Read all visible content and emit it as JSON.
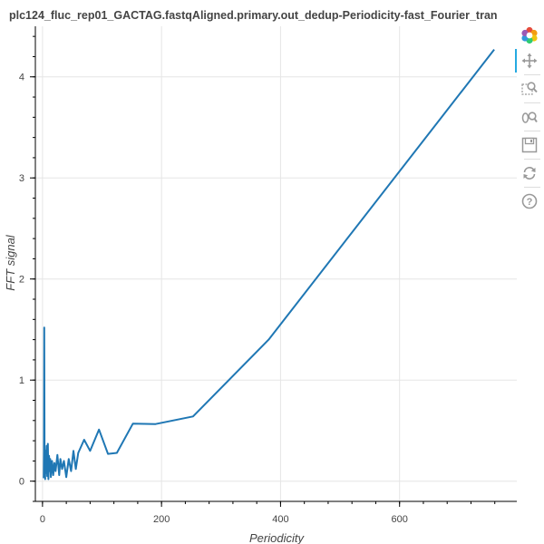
{
  "chart_data": {
    "type": "line",
    "title": "plc124_fluc_rep01_GACTAG.fastqAligned.primary.out_dedup-Periodicity-fast_Fourier_tran",
    "xlabel": "Periodicity",
    "ylabel": "FFT signal",
    "xlim": [
      -12,
      797
    ],
    "ylim": [
      -0.2,
      4.5
    ],
    "x_ticks": [
      0,
      200,
      400,
      600
    ],
    "y_ticks": [
      0,
      1,
      2,
      3,
      4
    ],
    "grid": true,
    "color": "#1f77b4",
    "series": [
      {
        "x": [
          2,
          2.5,
          3,
          3.5,
          4,
          4.5,
          5,
          5.5,
          6,
          7,
          8,
          9,
          10,
          11,
          12,
          13,
          14,
          16,
          18,
          20,
          22,
          25,
          28,
          30,
          33,
          36,
          40,
          44,
          48,
          52,
          56,
          60,
          70,
          80,
          95,
          110,
          125,
          152,
          190,
          253,
          380,
          759
        ],
        "y": [
          0.03,
          0.3,
          1.52,
          0.05,
          0.25,
          0.02,
          0.3,
          0.08,
          0.2,
          0.35,
          0.05,
          0.37,
          0.02,
          0.25,
          0.1,
          0.22,
          0.04,
          0.2,
          0.06,
          0.18,
          0.1,
          0.26,
          0.06,
          0.22,
          0.12,
          0.2,
          0.04,
          0.22,
          0.1,
          0.3,
          0.12,
          0.28,
          0.41,
          0.3,
          0.51,
          0.27,
          0.28,
          0.57,
          0.565,
          0.64,
          1.4,
          4.27
        ]
      }
    ]
  },
  "toolbar": {
    "tools": [
      {
        "icon": "bokeh-logo-icon"
      },
      {
        "icon": "pan-icon"
      },
      {
        "icon": "box-zoom-icon"
      },
      {
        "icon": "wheel-zoom-icon"
      },
      {
        "icon": "save-icon"
      },
      {
        "icon": "reset-icon"
      },
      {
        "icon": "help-icon"
      }
    ]
  }
}
